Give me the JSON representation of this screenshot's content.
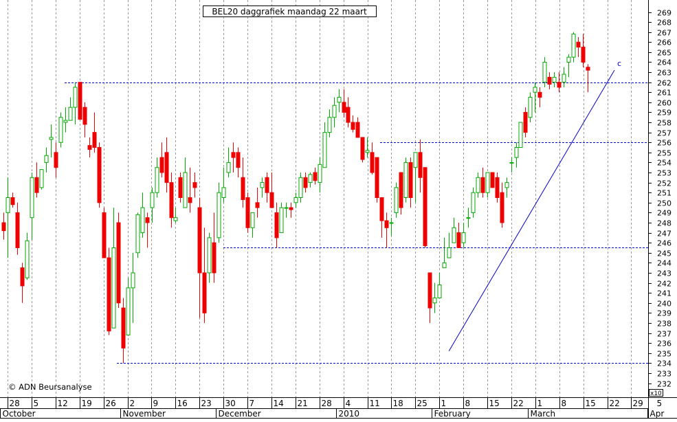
{
  "chart_data": {
    "type": "candlestick",
    "title": "BEL20 daggrafiek maandag 22 maart",
    "watermark": "© ADN Beursanalyse",
    "y_axis": {
      "side": "right",
      "range": [
        231.5,
        270
      ],
      "ticks": [
        232,
        233,
        234,
        235,
        236,
        237,
        238,
        239,
        240,
        241,
        242,
        243,
        244,
        245,
        246,
        247,
        248,
        249,
        250,
        251,
        252,
        253,
        254,
        255,
        256,
        257,
        258,
        259,
        260,
        261,
        262,
        263,
        264,
        265,
        266,
        267,
        268,
        269
      ],
      "multiplier_label": "x10"
    },
    "x_axis": {
      "day_labels": [
        "28",
        "5",
        "12",
        "19",
        "26",
        "2",
        "9",
        "16",
        "23",
        "30",
        "7",
        "14",
        "21",
        "28",
        "4",
        "11",
        "18",
        "25",
        "1",
        "8",
        "15",
        "22",
        "1",
        "8",
        "15",
        "22",
        "29",
        "5"
      ],
      "month_labels": [
        {
          "label": "October",
          "index": 0
        },
        {
          "label": "November",
          "index": 5
        },
        {
          "label": "December",
          "index": 9
        },
        {
          "label": "2010",
          "index": 14
        },
        {
          "label": "February",
          "index": 18
        },
        {
          "label": "March",
          "index": 22
        },
        {
          "label": "Apr",
          "index": 27
        }
      ]
    },
    "horizontal_lines": [
      262,
      256,
      245.5,
      234
    ],
    "trendline": {
      "from": {
        "x_index": 18.4,
        "y": 235.2
      },
      "to": {
        "x_index": 25.3,
        "y": 263.2
      },
      "label": "c"
    },
    "colors": {
      "up": "#00aa00",
      "down": "#ee0000",
      "grid": "#999999",
      "levels": "#0000cc",
      "trend": "#0000cc",
      "bullish_fill": "#ffffff",
      "bearish_fill": "#ee0000"
    },
    "candles": [
      {
        "o": 248,
        "h": 249,
        "l": 246.3,
        "c": 247.2
      },
      {
        "o": 249,
        "h": 252.5,
        "l": 244.5,
        "c": 250.5
      },
      {
        "o": 250.5,
        "h": 251,
        "l": 249.5,
        "c": 249.8
      },
      {
        "o": 249,
        "h": 250,
        "l": 244.8,
        "c": 245.5
      },
      {
        "o": 243.5,
        "h": 244,
        "l": 240,
        "c": 241.7
      },
      {
        "o": 242.5,
        "h": 247,
        "l": 242.3,
        "c": 246.2
      },
      {
        "o": 248.5,
        "h": 253,
        "l": 246.3,
        "c": 252.5
      },
      {
        "o": 252.5,
        "h": 254,
        "l": 250.5,
        "c": 251
      },
      {
        "o": 251.5,
        "h": 253.3,
        "l": 251.3,
        "c": 253.3
      },
      {
        "o": 254,
        "h": 255.5,
        "l": 253,
        "c": 254.7
      },
      {
        "o": 256.3,
        "h": 257.8,
        "l": 254.5,
        "c": 256.5
      },
      {
        "o": 255,
        "h": 256,
        "l": 252.5,
        "c": 253.5
      },
      {
        "o": 256,
        "h": 259,
        "l": 255.5,
        "c": 258.5
      },
      {
        "o": 258,
        "h": 259.5,
        "l": 257,
        "c": 258.2
      },
      {
        "o": 258.2,
        "h": 260.5,
        "l": 258.2,
        "c": 259.5
      },
      {
        "o": 259.5,
        "h": 262,
        "l": 257.8,
        "c": 261.5
      },
      {
        "o": 262,
        "h": 262,
        "l": 258.5,
        "c": 258.3
      },
      {
        "o": 259.5,
        "h": 260,
        "l": 256.5,
        "c": 257.8
      },
      {
        "o": 255.7,
        "h": 256.5,
        "l": 254.5,
        "c": 255.3
      },
      {
        "o": 257,
        "h": 259,
        "l": 255,
        "c": 255.5
      },
      {
        "o": 255.5,
        "h": 256,
        "l": 249.5,
        "c": 250
      },
      {
        "o": 249,
        "h": 249.5,
        "l": 244.5,
        "c": 244.5
      },
      {
        "o": 244.5,
        "h": 245.5,
        "l": 236.8,
        "c": 237.2
      },
      {
        "o": 237.5,
        "h": 249.5,
        "l": 237.5,
        "c": 245.5
      },
      {
        "o": 248,
        "h": 249,
        "l": 239.5,
        "c": 240
      },
      {
        "o": 239.5,
        "h": 240.5,
        "l": 234,
        "c": 235.5
      },
      {
        "o": 236.8,
        "h": 242.5,
        "l": 236.8,
        "c": 241.5
      },
      {
        "o": 241.5,
        "h": 245,
        "l": 238,
        "c": 243
      },
      {
        "o": 245,
        "h": 249,
        "l": 244.5,
        "c": 248.8
      },
      {
        "o": 247,
        "h": 251,
        "l": 246.5,
        "c": 249.5
      },
      {
        "o": 248.5,
        "h": 249,
        "l": 245.5,
        "c": 248
      },
      {
        "o": 249.5,
        "h": 251.5,
        "l": 248,
        "c": 251
      },
      {
        "o": 251,
        "h": 254.5,
        "l": 250.5,
        "c": 253.5
      },
      {
        "o": 254.5,
        "h": 256,
        "l": 252.5,
        "c": 253
      },
      {
        "o": 255,
        "h": 256.5,
        "l": 251,
        "c": 252
      },
      {
        "o": 252,
        "h": 253,
        "l": 247.5,
        "c": 248.5
      },
      {
        "o": 248.2,
        "h": 249.5,
        "l": 248,
        "c": 248.5
      },
      {
        "o": 252.5,
        "h": 253,
        "l": 250,
        "c": 250.5
      },
      {
        "o": 249.5,
        "h": 254.5,
        "l": 249.5,
        "c": 253
      },
      {
        "o": 250.5,
        "h": 253.5,
        "l": 249,
        "c": 250
      },
      {
        "o": 252,
        "h": 253,
        "l": 250.5,
        "c": 251.5
      },
      {
        "o": 249.5,
        "h": 250.5,
        "l": 238.5,
        "c": 243
      },
      {
        "o": 243,
        "h": 247.5,
        "l": 238,
        "c": 239
      },
      {
        "o": 243,
        "h": 247,
        "l": 242,
        "c": 246.5
      },
      {
        "o": 246,
        "h": 249,
        "l": 242,
        "c": 243
      },
      {
        "o": 246.5,
        "h": 252,
        "l": 246,
        "c": 251
      },
      {
        "o": 250.5,
        "h": 253.5,
        "l": 250,
        "c": 251.5
      },
      {
        "o": 253,
        "h": 255.5,
        "l": 252.5,
        "c": 254
      },
      {
        "o": 255,
        "h": 256,
        "l": 253,
        "c": 254.5
      },
      {
        "o": 255,
        "h": 255.5,
        "l": 252.5,
        "c": 253.5
      },
      {
        "o": 252.5,
        "h": 254.5,
        "l": 249.5,
        "c": 250.3
      },
      {
        "o": 250.5,
        "h": 251,
        "l": 247,
        "c": 247.5
      },
      {
        "o": 247.5,
        "h": 249,
        "l": 246.5,
        "c": 249
      },
      {
        "o": 250,
        "h": 251.5,
        "l": 248.5,
        "c": 249.5
      },
      {
        "o": 251.5,
        "h": 252.5,
        "l": 250.5,
        "c": 252
      },
      {
        "o": 252.5,
        "h": 253,
        "l": 250,
        "c": 251
      },
      {
        "o": 251,
        "h": 253,
        "l": 249.5,
        "c": 249.5
      },
      {
        "o": 249,
        "h": 250,
        "l": 245.5,
        "c": 246.5
      },
      {
        "o": 247,
        "h": 250,
        "l": 247,
        "c": 249.5
      },
      {
        "o": 249.5,
        "h": 250,
        "l": 248.5,
        "c": 249.5
      },
      {
        "o": 249.5,
        "h": 250,
        "l": 248.5,
        "c": 249.3
      },
      {
        "o": 250,
        "h": 251,
        "l": 249.5,
        "c": 250.5
      },
      {
        "o": 250.5,
        "h": 253,
        "l": 250,
        "c": 252.5
      },
      {
        "o": 252.5,
        "h": 253,
        "l": 251,
        "c": 251.5
      },
      {
        "o": 252,
        "h": 253,
        "l": 251.5,
        "c": 252.8
      },
      {
        "o": 253,
        "h": 253.5,
        "l": 251.8,
        "c": 252.2
      },
      {
        "o": 252,
        "h": 254.5,
        "l": 251,
        "c": 253.8
      },
      {
        "o": 253.5,
        "h": 258,
        "l": 253.5,
        "c": 257
      },
      {
        "o": 257,
        "h": 259.3,
        "l": 256.5,
        "c": 258.5
      },
      {
        "o": 258.5,
        "h": 260.5,
        "l": 257.5,
        "c": 259.7
      },
      {
        "o": 260,
        "h": 261.3,
        "l": 259,
        "c": 260.5
      },
      {
        "o": 260,
        "h": 261.3,
        "l": 258.5,
        "c": 259
      },
      {
        "o": 259.5,
        "h": 260.5,
        "l": 257.5,
        "c": 258
      },
      {
        "o": 258,
        "h": 258.7,
        "l": 257,
        "c": 257.3
      },
      {
        "o": 258,
        "h": 258.5,
        "l": 256.5,
        "c": 256.5
      },
      {
        "o": 256.5,
        "h": 256.5,
        "l": 254,
        "c": 254.3
      },
      {
        "o": 255,
        "h": 256.5,
        "l": 254.5,
        "c": 255.2
      },
      {
        "o": 255,
        "h": 256,
        "l": 252.8,
        "c": 253
      },
      {
        "o": 254.5,
        "h": 254.5,
        "l": 250,
        "c": 250.5
      },
      {
        "o": 250.5,
        "h": 250.5,
        "l": 246.5,
        "c": 248.2
      },
      {
        "o": 248.2,
        "h": 249,
        "l": 245.5,
        "c": 247.5
      },
      {
        "o": 248,
        "h": 248.5,
        "l": 246.7,
        "c": 248
      },
      {
        "o": 249,
        "h": 252,
        "l": 248.5,
        "c": 251.5
      },
      {
        "o": 253,
        "h": 253,
        "l": 248.8,
        "c": 249.5
      },
      {
        "o": 250.5,
        "h": 254.5,
        "l": 250,
        "c": 254
      },
      {
        "o": 254,
        "h": 254.5,
        "l": 249.5,
        "c": 250.5
      },
      {
        "o": 253.5,
        "h": 255,
        "l": 250,
        "c": 255
      },
      {
        "o": 255,
        "h": 256.3,
        "l": 251,
        "c": 252.5
      },
      {
        "o": 253.5,
        "h": 253.5,
        "l": 245.5,
        "c": 245.7
      },
      {
        "o": 243,
        "h": 243,
        "l": 238,
        "c": 239.5
      },
      {
        "o": 240,
        "h": 242,
        "l": 239,
        "c": 240.5
      },
      {
        "o": 240.5,
        "h": 243,
        "l": 240.5,
        "c": 241.8
      },
      {
        "o": 243.5,
        "h": 246.5,
        "l": 243.5,
        "c": 244
      },
      {
        "o": 244.5,
        "h": 247,
        "l": 244.5,
        "c": 245.5
      },
      {
        "o": 246,
        "h": 248.5,
        "l": 246,
        "c": 247.5
      },
      {
        "o": 247,
        "h": 248,
        "l": 245.5,
        "c": 245.5
      },
      {
        "o": 246,
        "h": 248,
        "l": 245.5,
        "c": 247
      },
      {
        "o": 248.5,
        "h": 249.5,
        "l": 247.5,
        "c": 248.5
      },
      {
        "o": 249,
        "h": 251.5,
        "l": 248.5,
        "c": 251
      },
      {
        "o": 251,
        "h": 253,
        "l": 250.5,
        "c": 252.5
      },
      {
        "o": 252.5,
        "h": 253.5,
        "l": 250.5,
        "c": 251
      },
      {
        "o": 251,
        "h": 253,
        "l": 250.5,
        "c": 253
      },
      {
        "o": 253,
        "h": 253,
        "l": 251.5,
        "c": 251.5
      },
      {
        "o": 252.5,
        "h": 253,
        "l": 250,
        "c": 250.5
      },
      {
        "o": 251,
        "h": 252,
        "l": 247.5,
        "c": 248
      },
      {
        "o": 251.5,
        "h": 252.5,
        "l": 250.5,
        "c": 252
      },
      {
        "o": 254,
        "h": 254.5,
        "l": 253,
        "c": 254
      },
      {
        "o": 254.5,
        "h": 256,
        "l": 253.5,
        "c": 255.5
      },
      {
        "o": 255.5,
        "h": 258,
        "l": 255.5,
        "c": 258
      },
      {
        "o": 259,
        "h": 259.5,
        "l": 256.5,
        "c": 257
      },
      {
        "o": 258.5,
        "h": 261,
        "l": 258,
        "c": 260.5
      },
      {
        "o": 261,
        "h": 262,
        "l": 259,
        "c": 261.5
      },
      {
        "o": 261,
        "h": 261.5,
        "l": 259.5,
        "c": 260.5
      },
      {
        "o": 262,
        "h": 264.5,
        "l": 261.5,
        "c": 264
      },
      {
        "o": 262.5,
        "h": 263,
        "l": 261.3,
        "c": 261.8
      },
      {
        "o": 262,
        "h": 263,
        "l": 261.5,
        "c": 262.5
      },
      {
        "o": 262,
        "h": 263,
        "l": 261,
        "c": 261.5
      },
      {
        "o": 262,
        "h": 263.5,
        "l": 261.5,
        "c": 262.8
      },
      {
        "o": 264,
        "h": 264.8,
        "l": 262.5,
        "c": 264.5
      },
      {
        "o": 264.5,
        "h": 267,
        "l": 264,
        "c": 266.8
      },
      {
        "o": 266,
        "h": 266.5,
        "l": 264.5,
        "c": 265.5
      },
      {
        "o": 265.5,
        "h": 266.8,
        "l": 263.5,
        "c": 264
      },
      {
        "o": 263.5,
        "h": 263.8,
        "l": 261,
        "c": 263.2
      }
    ]
  }
}
